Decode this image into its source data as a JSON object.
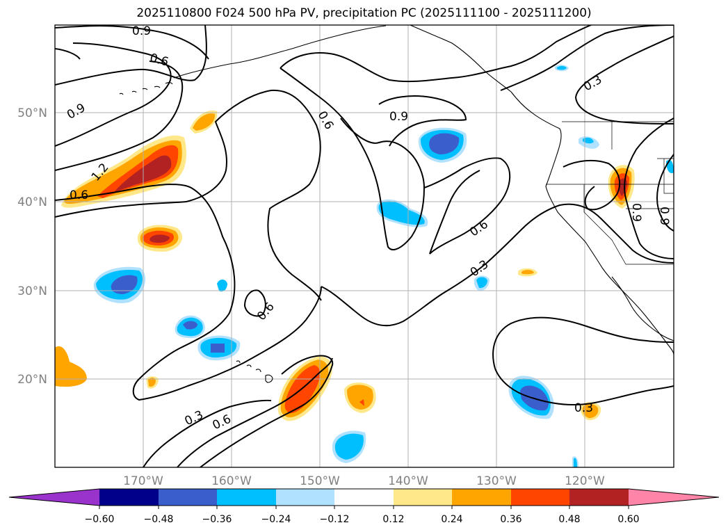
{
  "title": "2025110800 F024 500 hPa PV, precipitation PC (2025111100 - 2025111200)",
  "lat_labels": [
    "50°N",
    "40°N",
    "30°N",
    "20°N"
  ],
  "lon_labels": [
    "170°W",
    "160°W",
    "150°W",
    "140°W",
    "130°W",
    "120°W"
  ],
  "contour_labels": [
    "0.9",
    "0.6",
    "0.9",
    "1.2",
    "0.6",
    "0.6",
    "0.9",
    "0.3",
    "0.6",
    "0.3",
    "0.6",
    "0.3",
    "0.6",
    "0.3",
    "0.9",
    "0.9"
  ],
  "colorbar": {
    "tick_labels": [
      "−0.60",
      "−0.48",
      "−0.36",
      "−0.24",
      "−0.12",
      "0.12",
      "0.24",
      "0.36",
      "0.48",
      "0.60"
    ],
    "colors": [
      "#9933cc",
      "#00008b",
      "#3a5fcd",
      "#00bfff",
      "#b0e2ff",
      "#ffffff",
      "#ffe88a",
      "#ffa500",
      "#ff4500",
      "#b22222",
      "#ff85a8"
    ]
  },
  "colors": {
    "pos_light": "#ffe88a",
    "pos_mid": "#ffa500",
    "pos_strong": "#ff4500",
    "pos_max": "#b22222",
    "neg_light": "#b0e2ff",
    "neg_mid": "#00bfff",
    "neg_strong": "#3a5fcd",
    "grid": "#b0b0b0"
  }
}
